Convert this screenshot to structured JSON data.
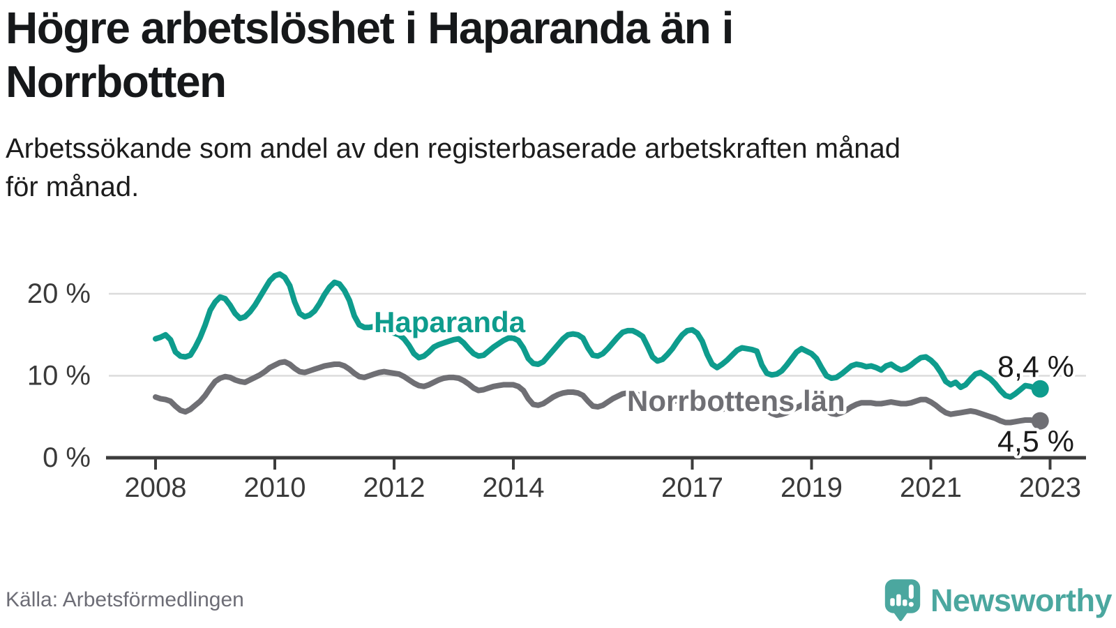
{
  "page": {
    "title": "Högre arbetslöshet i Haparanda än i\nNorrbotten",
    "subtitle": "Arbetssökande som andel av den registerbaserade arbetskraften månad\nför månad.",
    "source": "Källa: Arbetsförmedlingen",
    "brand": "Newsworthy"
  },
  "colors": {
    "haparanda": "#0e9c8d",
    "norrbotten": "#6f6f74",
    "grid": "#dcdcdc",
    "axis": "#3c3c3c",
    "tick_label": "#3a3a3a",
    "value_label": "#1a1a1a",
    "title_text": "#16181a",
    "muted_text": "#6d6d76",
    "brand_teal": "#4ba79f"
  },
  "chart_data": {
    "type": "line",
    "unit": "%",
    "frequency": "monthly",
    "start_year": 2008,
    "start_month": 1,
    "x_tick_years": [
      2008,
      2010,
      2012,
      2014,
      2017,
      2019,
      2021,
      2023
    ],
    "y_ticks": [
      {
        "value": 0,
        "label": "0 %"
      },
      {
        "value": 10,
        "label": "10 %"
      },
      {
        "value": 20,
        "label": "20 %"
      }
    ],
    "ylim": [
      0,
      23.5
    ],
    "x_range": [
      2008,
      2023.3
    ],
    "grid": "horizontal",
    "legend_position": "inline-labels",
    "series": [
      {
        "name": "Haparanda",
        "color": "#0e9c8d",
        "end_label": "8,4 %",
        "last_value": 8.4,
        "values": [
          14.5,
          14.7,
          15.0,
          14.4,
          12.9,
          12.4,
          12.3,
          12.5,
          13.5,
          14.7,
          16.2,
          18.0,
          19.0,
          19.6,
          19.4,
          18.6,
          17.6,
          17.0,
          17.2,
          17.8,
          18.6,
          19.6,
          20.6,
          21.6,
          22.2,
          22.4,
          22.0,
          21.0,
          19.0,
          17.6,
          17.2,
          17.4,
          17.9,
          18.8,
          19.9,
          20.8,
          21.4,
          21.2,
          20.4,
          19.2,
          17.3,
          16.2,
          15.9,
          15.9,
          16.0,
          15.9,
          15.7,
          15.4,
          15.2,
          15.0,
          14.5,
          13.7,
          12.7,
          12.2,
          12.4,
          12.9,
          13.5,
          13.8,
          14.0,
          14.2,
          14.4,
          14.5,
          14.0,
          13.3,
          12.7,
          12.4,
          12.5,
          13.0,
          13.5,
          13.9,
          14.3,
          14.6,
          14.6,
          14.3,
          13.4,
          12.1,
          11.5,
          11.4,
          11.7,
          12.4,
          13.1,
          13.8,
          14.5,
          15.0,
          15.1,
          15.0,
          14.6,
          13.4,
          12.5,
          12.4,
          12.7,
          13.3,
          14.0,
          14.7,
          15.3,
          15.5,
          15.5,
          15.2,
          14.8,
          13.6,
          12.3,
          11.8,
          12.0,
          12.6,
          13.3,
          14.2,
          15.0,
          15.5,
          15.6,
          15.2,
          14.2,
          12.6,
          11.4,
          11.0,
          11.4,
          11.9,
          12.5,
          13.1,
          13.4,
          13.3,
          13.2,
          13.0,
          11.3,
          10.3,
          10.1,
          10.2,
          10.6,
          11.3,
          12.1,
          12.9,
          13.3,
          13.0,
          12.7,
          12.1,
          11.0,
          10.0,
          9.7,
          9.8,
          10.2,
          10.7,
          11.2,
          11.4,
          11.3,
          11.1,
          11.2,
          11.0,
          10.7,
          11.2,
          11.4,
          11.0,
          10.7,
          10.9,
          11.3,
          11.8,
          12.2,
          12.3,
          11.9,
          11.3,
          10.4,
          9.3,
          8.9,
          9.2,
          8.6,
          8.9,
          9.6,
          10.2,
          10.4,
          10.0,
          9.6,
          9.0,
          8.2,
          7.6,
          7.4,
          7.8,
          8.3,
          8.8,
          8.7,
          8.5,
          8.4
        ]
      },
      {
        "name": "Norrbottens län",
        "color": "#6f6f74",
        "end_label": "4,5 %",
        "last_value": 4.5,
        "values": [
          7.4,
          7.2,
          7.1,
          6.9,
          6.3,
          5.8,
          5.6,
          5.9,
          6.4,
          6.9,
          7.6,
          8.5,
          9.3,
          9.7,
          9.9,
          9.8,
          9.5,
          9.3,
          9.2,
          9.5,
          9.8,
          10.1,
          10.5,
          11.0,
          11.3,
          11.6,
          11.7,
          11.4,
          10.9,
          10.5,
          10.4,
          10.6,
          10.8,
          11.0,
          11.2,
          11.3,
          11.4,
          11.4,
          11.2,
          10.8,
          10.3,
          9.9,
          9.8,
          10.0,
          10.2,
          10.4,
          10.5,
          10.4,
          10.3,
          10.2,
          9.9,
          9.5,
          9.1,
          8.8,
          8.7,
          8.9,
          9.2,
          9.5,
          9.7,
          9.8,
          9.8,
          9.7,
          9.4,
          9.0,
          8.5,
          8.2,
          8.3,
          8.5,
          8.7,
          8.8,
          8.9,
          8.9,
          8.9,
          8.7,
          8.2,
          7.2,
          6.5,
          6.4,
          6.6,
          7.0,
          7.4,
          7.7,
          7.9,
          8.0,
          8.0,
          7.9,
          7.6,
          6.9,
          6.3,
          6.2,
          6.4,
          6.8,
          7.2,
          7.5,
          7.8,
          7.9,
          7.9,
          7.7,
          7.4,
          6.8,
          6.2,
          6.0,
          6.1,
          6.4,
          6.8,
          7.0,
          7.2,
          7.3,
          7.2,
          7.0,
          6.7,
          6.2,
          5.9,
          5.8,
          5.9,
          6.1,
          6.4,
          6.7,
          6.9,
          7.0,
          6.9,
          6.7,
          6.4,
          5.8,
          5.4,
          5.2,
          5.3,
          5.5,
          5.8,
          6.1,
          6.4,
          6.7,
          6.8,
          6.6,
          6.3,
          5.8,
          5.4,
          5.3,
          5.5,
          5.8,
          6.2,
          6.5,
          6.7,
          6.7,
          6.7,
          6.6,
          6.6,
          6.7,
          6.8,
          6.7,
          6.6,
          6.6,
          6.7,
          6.9,
          7.1,
          7.1,
          6.8,
          6.4,
          5.9,
          5.5,
          5.3,
          5.4,
          5.5,
          5.6,
          5.7,
          5.6,
          5.4,
          5.2,
          5.0,
          4.8,
          4.5,
          4.3,
          4.3,
          4.4,
          4.5,
          4.6,
          4.6,
          4.5,
          4.5
        ]
      }
    ]
  }
}
